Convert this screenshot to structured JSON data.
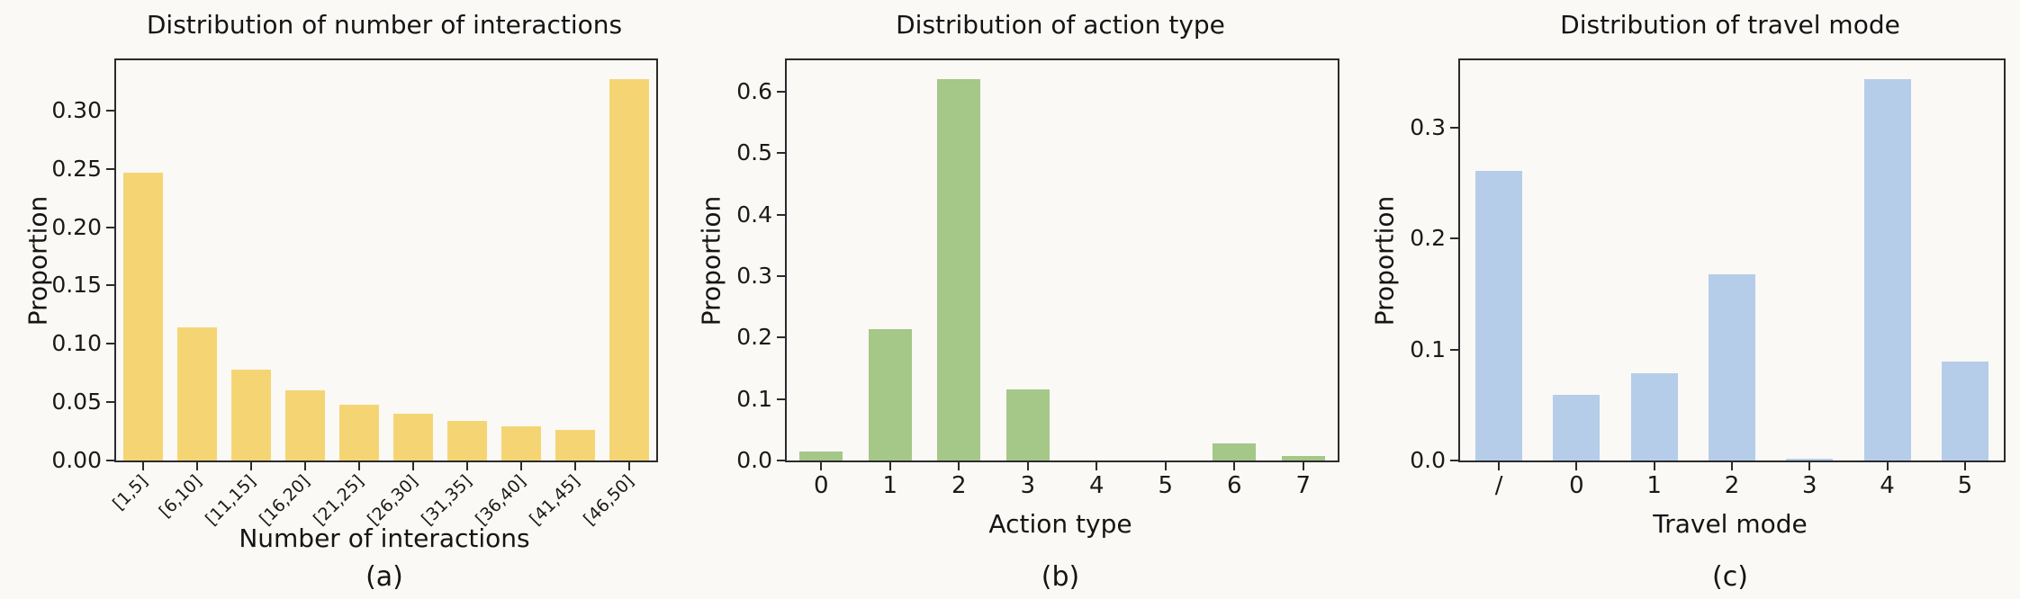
{
  "page": {
    "background": "#faf9f6"
  },
  "chart_data": [
    {
      "type": "bar",
      "title": "Distribution of number of interactions",
      "xlabel": "Number of interactions",
      "ylabel": "Proportion",
      "caption": "(a)",
      "categories": [
        "[1,5]",
        "[6,10]",
        "[11,15]",
        "[16,20]",
        "[21,25]",
        "[26,30]",
        "[31,35]",
        "[36,40]",
        "[41,45]",
        "[46,50]"
      ],
      "values": [
        0.247,
        0.114,
        0.078,
        0.06,
        0.048,
        0.04,
        0.034,
        0.029,
        0.026,
        0.327
      ],
      "ytick_values": [
        0.0,
        0.05,
        0.1,
        0.15,
        0.2,
        0.25,
        0.3
      ],
      "ytick_labels": [
        "0.00",
        "0.05",
        "0.10",
        "0.15",
        "0.20",
        "0.25",
        "0.30"
      ],
      "ylim": [
        0,
        0.343
      ],
      "bar_color": "#f5d573",
      "xtick_rotation": 45,
      "grid": false
    },
    {
      "type": "bar",
      "title": "Distribution of action type",
      "xlabel": "Action type",
      "ylabel": "Proportion",
      "caption": "(b)",
      "categories": [
        "0",
        "1",
        "2",
        "3",
        "4",
        "5",
        "6",
        "7"
      ],
      "values": [
        0.015,
        0.213,
        0.62,
        0.115,
        0.0,
        0.0,
        0.028,
        0.008
      ],
      "ytick_values": [
        0.0,
        0.1,
        0.2,
        0.3,
        0.4,
        0.5,
        0.6
      ],
      "ytick_labels": [
        "0.0",
        "0.1",
        "0.2",
        "0.3",
        "0.4",
        "0.5",
        "0.6"
      ],
      "ylim": [
        0,
        0.651
      ],
      "bar_color": "#a5c787",
      "xtick_rotation": 0,
      "grid": false
    },
    {
      "type": "bar",
      "title": "Distribution of travel mode",
      "xlabel": "Travel mode",
      "ylabel": "Proportion",
      "caption": "(c)",
      "categories": [
        "/",
        "0",
        "1",
        "2",
        "3",
        "4",
        "5"
      ],
      "values": [
        0.261,
        0.059,
        0.079,
        0.168,
        0.002,
        0.344,
        0.089
      ],
      "ytick_values": [
        0.0,
        0.1,
        0.2,
        0.3
      ],
      "ytick_labels": [
        "0.0",
        "0.1",
        "0.2",
        "0.3"
      ],
      "ylim": [
        0,
        0.361
      ],
      "bar_color": "#b5cde9",
      "xtick_rotation": 0,
      "grid": false
    }
  ]
}
